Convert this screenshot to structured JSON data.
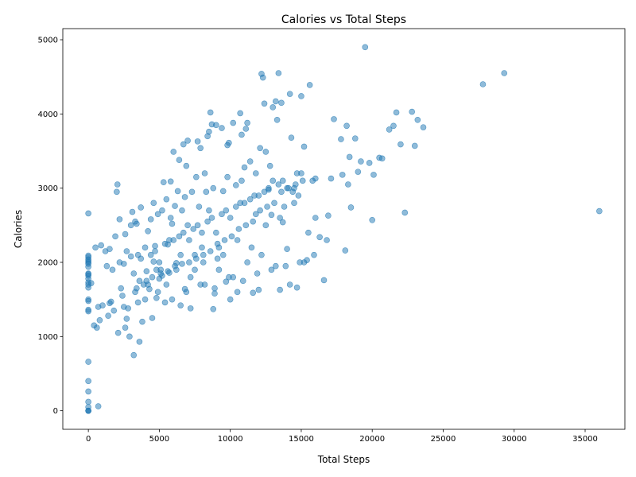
{
  "chart_data": {
    "type": "scatter",
    "title": "Calories vs Total Steps",
    "xlabel": "Total Steps",
    "ylabel": "Calories",
    "xlim": [
      -1800,
      37800
    ],
    "ylim": [
      -250,
      5150
    ],
    "xticks": [
      0,
      5000,
      10000,
      15000,
      20000,
      25000,
      30000,
      35000
    ],
    "yticks": [
      0,
      1000,
      2000,
      3000,
      4000,
      5000
    ],
    "grid": false,
    "legend": "none",
    "marker_color": "#1f77b4",
    "marker_opacity": 0.5,
    "series": [
      {
        "points": [
          [
            0,
            0
          ],
          [
            0,
            0
          ],
          [
            0,
            0
          ],
          [
            0,
            50
          ],
          [
            0,
            120
          ],
          [
            0,
            260
          ],
          [
            0,
            400
          ],
          [
            0,
            660
          ],
          [
            700,
            60
          ],
          [
            0,
            1340
          ],
          [
            0,
            1360
          ],
          [
            0,
            1480
          ],
          [
            0,
            1500
          ],
          [
            0,
            1660
          ],
          [
            0,
            1700
          ],
          [
            0,
            1730
          ],
          [
            0,
            1780
          ],
          [
            0,
            1820
          ],
          [
            0,
            1840
          ],
          [
            0,
            1850
          ],
          [
            0,
            1940
          ],
          [
            0,
            1980
          ],
          [
            0,
            2000
          ],
          [
            0,
            2020
          ],
          [
            0,
            2040
          ],
          [
            0,
            2070
          ],
          [
            0,
            2090
          ],
          [
            0,
            2660
          ],
          [
            200,
            1720
          ],
          [
            400,
            1150
          ],
          [
            600,
            1120
          ],
          [
            800,
            1220
          ],
          [
            700,
            1400
          ],
          [
            500,
            2200
          ],
          [
            900,
            2230
          ],
          [
            1200,
            2150
          ],
          [
            1300,
            1950
          ],
          [
            1400,
            1280
          ],
          [
            1500,
            1450
          ],
          [
            1600,
            1470
          ],
          [
            1800,
            1350
          ],
          [
            1900,
            2350
          ],
          [
            2000,
            2950
          ],
          [
            2050,
            3050
          ],
          [
            2100,
            1050
          ],
          [
            2200,
            2580
          ],
          [
            2300,
            1650
          ],
          [
            2500,
            1400
          ],
          [
            2600,
            1120
          ],
          [
            2700,
            1240
          ],
          [
            2800,
            1380
          ],
          [
            2900,
            1000
          ],
          [
            3000,
            2500
          ],
          [
            3100,
            2680
          ],
          [
            3200,
            750
          ],
          [
            3300,
            1600
          ],
          [
            3400,
            2520
          ],
          [
            3500,
            1460
          ],
          [
            3600,
            930
          ],
          [
            3700,
            2740
          ],
          [
            3800,
            1200
          ],
          [
            3900,
            1700
          ],
          [
            4000,
            2200
          ],
          [
            4100,
            1880
          ],
          [
            4200,
            2420
          ],
          [
            4300,
            1640
          ],
          [
            4400,
            2580
          ],
          [
            4500,
            1250
          ],
          [
            4600,
            2010
          ],
          [
            4700,
            2220
          ],
          [
            4800,
            1520
          ],
          [
            4900,
            2650
          ],
          [
            5000,
            1780
          ],
          [
            5100,
            1900
          ],
          [
            5200,
            2700
          ],
          [
            5300,
            3080
          ],
          [
            5400,
            1460
          ],
          [
            5500,
            2850
          ],
          [
            5600,
            2240
          ],
          [
            5700,
            1860
          ],
          [
            5800,
            3090
          ],
          [
            5900,
            2520
          ],
          [
            6000,
            3490
          ],
          [
            6100,
            2760
          ],
          [
            6200,
            1990
          ],
          [
            6300,
            2960
          ],
          [
            6400,
            3380
          ],
          [
            6500,
            1420
          ],
          [
            6600,
            2700
          ],
          [
            6700,
            3590
          ],
          [
            6800,
            1640
          ],
          [
            6900,
            3300
          ],
          [
            7000,
            3640
          ],
          [
            7100,
            2300
          ],
          [
            7200,
            1380
          ],
          [
            7300,
            2950
          ],
          [
            7500,
            2100
          ],
          [
            7600,
            3150
          ],
          [
            7700,
            3630
          ],
          [
            7900,
            3540
          ],
          [
            8000,
            2400
          ],
          [
            8100,
            2000
          ],
          [
            8200,
            3200
          ],
          [
            8300,
            2950
          ],
          [
            8400,
            3700
          ],
          [
            8500,
            3760
          ],
          [
            8600,
            4020
          ],
          [
            8700,
            3860
          ],
          [
            8800,
            1370
          ],
          [
            8900,
            1580
          ],
          [
            9000,
            3850
          ],
          [
            9100,
            2050
          ],
          [
            9200,
            2200
          ],
          [
            9400,
            3810
          ],
          [
            9500,
            2960
          ],
          [
            9700,
            1740
          ],
          [
            9800,
            3580
          ],
          [
            9900,
            3610
          ],
          [
            10000,
            1500
          ],
          [
            10200,
            3880
          ],
          [
            10400,
            3040
          ],
          [
            10500,
            1600
          ],
          [
            10700,
            4010
          ],
          [
            10800,
            3720
          ],
          [
            11000,
            3280
          ],
          [
            11100,
            3800
          ],
          [
            11200,
            3880
          ],
          [
            11400,
            3360
          ],
          [
            11600,
            1590
          ],
          [
            11800,
            2650
          ],
          [
            12000,
            1630
          ],
          [
            12100,
            3540
          ],
          [
            12200,
            4540
          ],
          [
            12300,
            4490
          ],
          [
            12400,
            4140
          ],
          [
            12500,
            3490
          ],
          [
            12700,
            2980
          ],
          [
            12900,
            2640
          ],
          [
            13000,
            4090
          ],
          [
            13200,
            4170
          ],
          [
            13300,
            3920
          ],
          [
            13400,
            4550
          ],
          [
            13500,
            1630
          ],
          [
            13600,
            4150
          ],
          [
            13700,
            2540
          ],
          [
            14000,
            2180
          ],
          [
            14200,
            4270
          ],
          [
            14300,
            3680
          ],
          [
            14500,
            3000
          ],
          [
            14700,
            1660
          ],
          [
            15000,
            4240
          ],
          [
            15200,
            3560
          ],
          [
            15400,
            2030
          ],
          [
            15600,
            4390
          ],
          [
            16000,
            3130
          ],
          [
            16300,
            2340
          ],
          [
            16600,
            1760
          ],
          [
            16900,
            2630
          ],
          [
            17100,
            3130
          ],
          [
            17300,
            3930
          ],
          [
            17800,
            3660
          ],
          [
            18100,
            2160
          ],
          [
            18200,
            3840
          ],
          [
            18300,
            3050
          ],
          [
            18500,
            2740
          ],
          [
            18800,
            3670
          ],
          [
            19000,
            3220
          ],
          [
            19500,
            4900
          ],
          [
            19800,
            3340
          ],
          [
            20000,
            2570
          ],
          [
            20100,
            3180
          ],
          [
            20500,
            3410
          ],
          [
            20700,
            3400
          ],
          [
            21200,
            3790
          ],
          [
            21500,
            3840
          ],
          [
            21700,
            4020
          ],
          [
            22000,
            3590
          ],
          [
            22300,
            2670
          ],
          [
            22800,
            4030
          ],
          [
            23000,
            3570
          ],
          [
            23200,
            3920
          ],
          [
            23600,
            3820
          ],
          [
            27800,
            4400
          ],
          [
            29300,
            4550
          ],
          [
            36000,
            2690
          ],
          [
            1000,
            1420
          ],
          [
            1500,
            2180
          ],
          [
            2500,
            1980
          ],
          [
            3000,
            2080
          ],
          [
            3500,
            2100
          ],
          [
            4000,
            1500
          ],
          [
            4500,
            1800
          ],
          [
            5000,
            2000
          ],
          [
            5500,
            1700
          ],
          [
            6000,
            2300
          ],
          [
            6500,
            2100
          ],
          [
            7000,
            2500
          ],
          [
            7500,
            1900
          ],
          [
            8000,
            2200
          ],
          [
            8500,
            2700
          ],
          [
            9000,
            2400
          ],
          [
            9500,
            2100
          ],
          [
            10000,
            2600
          ],
          [
            10500,
            2300
          ],
          [
            11000,
            2800
          ],
          [
            11500,
            2200
          ],
          [
            12000,
            2900
          ],
          [
            12500,
            2500
          ],
          [
            13000,
            3100
          ],
          [
            13500,
            2600
          ],
          [
            14000,
            3000
          ],
          [
            14500,
            2800
          ],
          [
            15000,
            3200
          ],
          [
            15500,
            2400
          ],
          [
            16000,
            2600
          ],
          [
            3200,
            1850
          ],
          [
            3600,
            1750
          ],
          [
            4200,
            1700
          ],
          [
            4800,
            1900
          ],
          [
            5200,
            1820
          ],
          [
            5600,
            1880
          ],
          [
            6100,
            1950
          ],
          [
            6600,
            1980
          ],
          [
            7100,
            2000
          ],
          [
            7600,
            2050
          ],
          [
            8100,
            2100
          ],
          [
            8600,
            2150
          ],
          [
            9100,
            2250
          ],
          [
            9600,
            2300
          ],
          [
            10100,
            2350
          ],
          [
            10600,
            2450
          ],
          [
            11100,
            2500
          ],
          [
            11600,
            2550
          ],
          [
            12100,
            2700
          ],
          [
            12600,
            2750
          ],
          [
            13100,
            2800
          ],
          [
            13600,
            2950
          ],
          [
            14100,
            3000
          ],
          [
            14600,
            3050
          ],
          [
            15100,
            3100
          ],
          [
            2600,
            2380
          ],
          [
            3300,
            2550
          ],
          [
            4600,
            2800
          ],
          [
            5800,
            2600
          ],
          [
            6800,
            2880
          ],
          [
            7800,
            2750
          ],
          [
            8800,
            3000
          ],
          [
            9800,
            3150
          ],
          [
            10800,
            3100
          ],
          [
            11800,
            3200
          ],
          [
            12800,
            3300
          ],
          [
            13800,
            2750
          ],
          [
            14800,
            2900
          ],
          [
            15800,
            3100
          ],
          [
            16800,
            2300
          ],
          [
            4400,
            2100
          ],
          [
            5400,
            2250
          ],
          [
            6400,
            2350
          ],
          [
            7400,
            2450
          ],
          [
            8400,
            2550
          ],
          [
            9400,
            2650
          ],
          [
            10400,
            2750
          ],
          [
            11400,
            2850
          ],
          [
            12400,
            2950
          ],
          [
            13400,
            3050
          ],
          [
            14400,
            2950
          ],
          [
            2200,
            2000
          ],
          [
            2700,
            2150
          ],
          [
            3700,
            2050
          ],
          [
            4700,
            2150
          ],
          [
            5700,
            2300
          ],
          [
            6700,
            2400
          ],
          [
            7700,
            2500
          ],
          [
            8700,
            2600
          ],
          [
            9700,
            2700
          ],
          [
            10700,
            2800
          ],
          [
            11700,
            2900
          ],
          [
            12700,
            3000
          ],
          [
            13700,
            3100
          ],
          [
            14700,
            3200
          ],
          [
            1700,
            1900
          ],
          [
            2400,
            1550
          ],
          [
            3400,
            1650
          ],
          [
            4100,
            1750
          ],
          [
            5100,
            1850
          ],
          [
            6200,
            1900
          ],
          [
            7200,
            1800
          ],
          [
            8200,
            1700
          ],
          [
            9200,
            1900
          ],
          [
            10200,
            1800
          ],
          [
            11200,
            2000
          ],
          [
            12200,
            2100
          ],
          [
            13200,
            1950
          ],
          [
            14200,
            1700
          ],
          [
            15200,
            2000
          ],
          [
            4900,
            1600
          ],
          [
            5900,
            1500
          ],
          [
            6900,
            1600
          ],
          [
            7900,
            1700
          ],
          [
            8900,
            1650
          ],
          [
            9900,
            1800
          ],
          [
            10900,
            1750
          ],
          [
            11900,
            1850
          ],
          [
            12900,
            1900
          ],
          [
            13900,
            1950
          ],
          [
            14900,
            2000
          ],
          [
            15900,
            2100
          ],
          [
            17900,
            3180
          ],
          [
            18400,
            3420
          ],
          [
            19200,
            3360
          ]
        ]
      }
    ]
  }
}
